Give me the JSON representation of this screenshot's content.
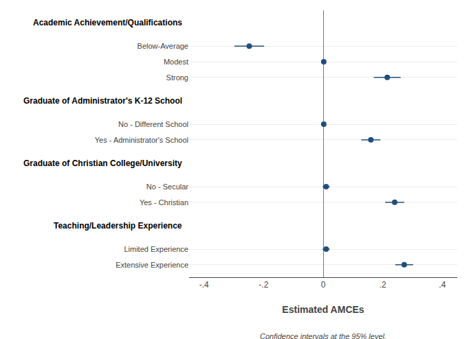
{
  "chart_data": {
    "type": "dot",
    "orientation": "horizontal",
    "xlabel": "Estimated AMCEs",
    "footnote": "Confidence intervals at the 95% level.",
    "color": "#1f4e79",
    "grid": true,
    "sections": [
      {
        "name": "Academic Achievement/Qualifications",
        "categories": [
          "Below-Average",
          "Modest",
          "Strong"
        ],
        "values": [
          -0.248,
          0.002,
          0.215
        ],
        "ci_low": [
          -0.298,
          -0.005,
          0.17
        ],
        "ci_high": [
          -0.198,
          0.009,
          0.26
        ]
      },
      {
        "name": "Graduate of Administrator's K-12 School",
        "categories": [
          "No - Different School",
          "Yes - Administrator's School"
        ],
        "values": [
          0.002,
          0.16
        ],
        "ci_low": [
          -0.005,
          0.128
        ],
        "ci_high": [
          0.009,
          0.192
        ]
      },
      {
        "name": "Graduate of Christian College/University",
        "categories": [
          "No - Secular",
          "Yes - Christian"
        ],
        "values": [
          0.01,
          0.24
        ],
        "ci_low": [
          -0.002,
          0.208
        ],
        "ci_high": [
          0.022,
          0.272
        ]
      },
      {
        "name": "Teaching/Leadership Experience",
        "categories": [
          "Limited Experience",
          "Extensive Experience"
        ],
        "values": [
          0.01,
          0.272
        ],
        "ci_low": [
          -0.002,
          0.242
        ],
        "ci_high": [
          0.022,
          0.302
        ]
      }
    ],
    "xlim": [
      -0.45,
      0.45
    ],
    "xticks": [
      {
        "value": -0.4,
        "label": "-.4"
      },
      {
        "value": -0.2,
        "label": "-.2"
      },
      0,
      {
        "value": 0.2,
        "label": ".2"
      },
      {
        "value": 0.4,
        "label": ".4"
      }
    ]
  }
}
